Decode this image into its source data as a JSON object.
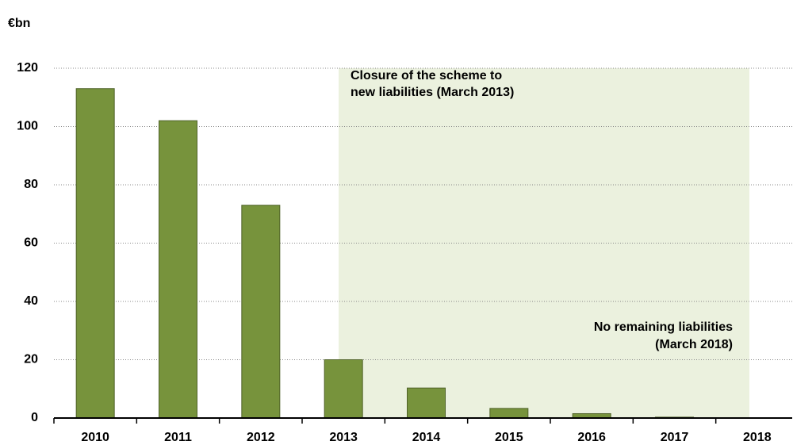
{
  "chart_data": {
    "type": "bar",
    "y_label": "€bn",
    "categories": [
      "2010",
      "2011",
      "2012",
      "2013",
      "2014",
      "2015",
      "2016",
      "2017",
      "2018"
    ],
    "values": [
      113,
      102,
      73,
      20,
      10.3,
      3.3,
      1.5,
      0.3,
      0
    ],
    "color": "#77933c",
    "ylim": [
      0,
      120
    ],
    "yticks": [
      0,
      20,
      40,
      60,
      80,
      100,
      120
    ],
    "grid": true,
    "annotations": [
      "Closure of the scheme to",
      "new liabilities (March 2013)",
      "No remaining liabilities",
      "(March 2018)"
    ]
  }
}
